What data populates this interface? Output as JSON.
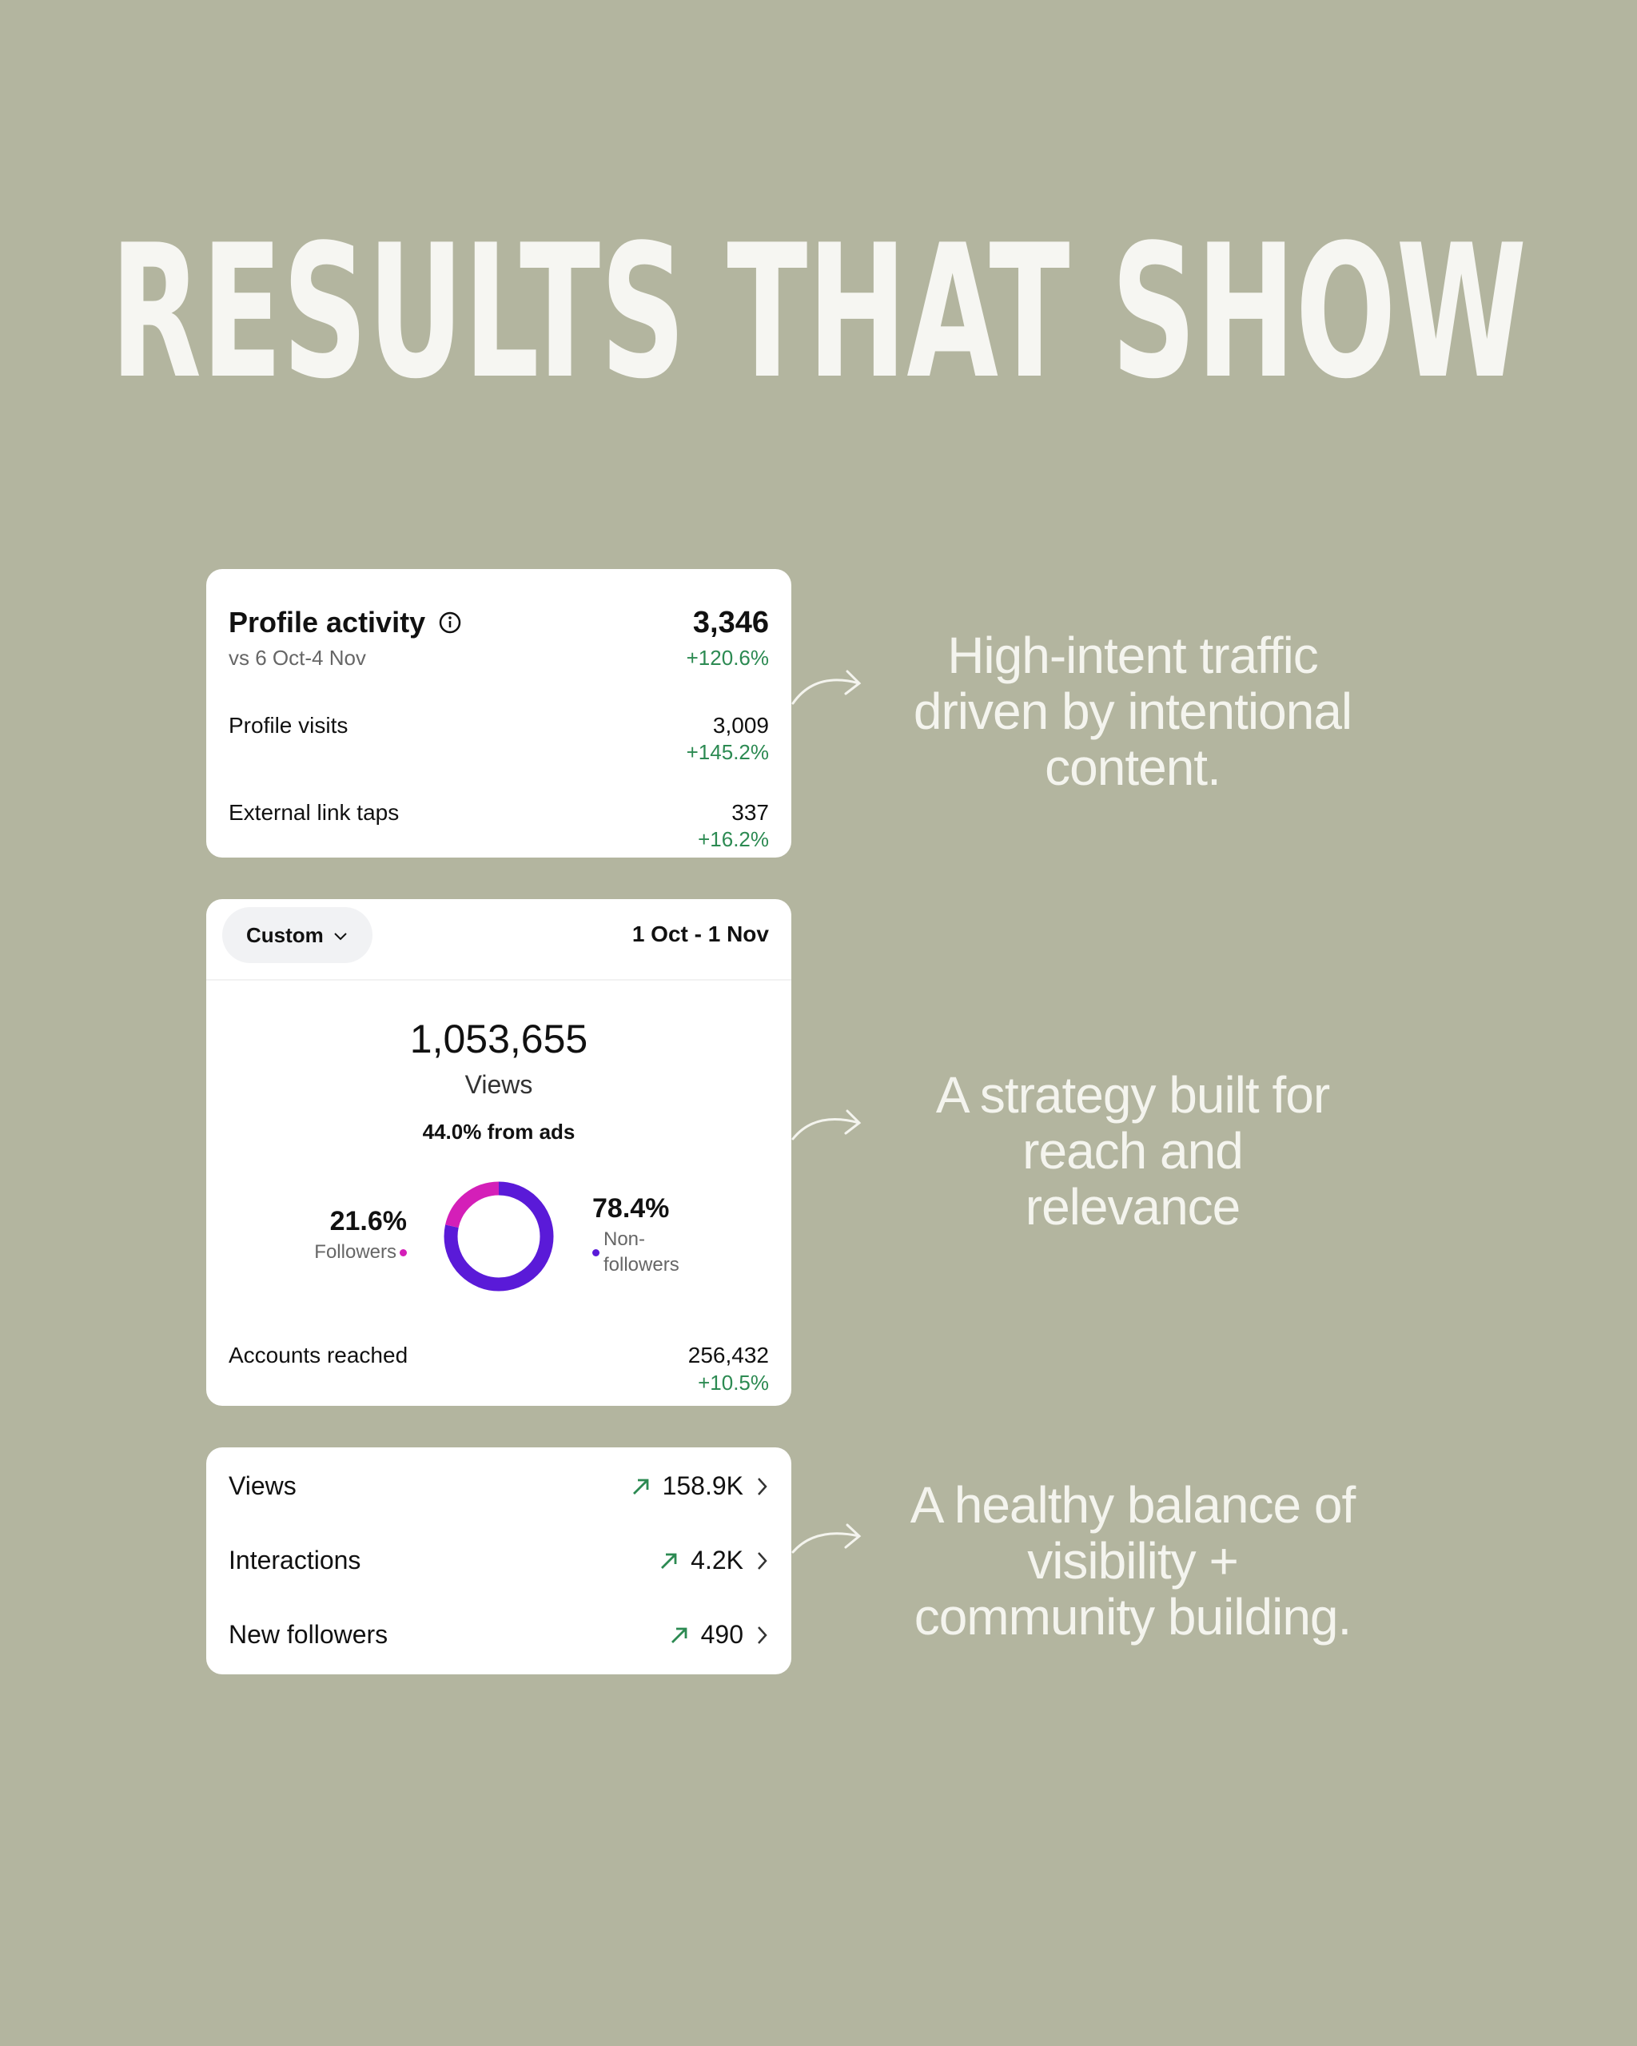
{
  "title": "RESULTS THAT SHOW",
  "profile_activity": {
    "title": "Profile activity",
    "comparison": "vs 6 Oct-4 Nov",
    "total": "3,346",
    "change": "+120.6%",
    "rows": [
      {
        "label": "Profile visits",
        "value": "3,009",
        "change": "+145.2%"
      },
      {
        "label": "External link taps",
        "value": "337",
        "change": "+16.2%"
      }
    ]
  },
  "views_card": {
    "filter": "Custom",
    "date_range": "1 Oct - 1 Nov",
    "views": "1,053,655",
    "views_label": "Views",
    "ads_note": "44.0% from ads",
    "segments": [
      {
        "value": 21.6,
        "label": "21.6%",
        "name": "Followers",
        "color": "#d41fb8"
      },
      {
        "value": 78.4,
        "label": "78.4%",
        "name": "Non-followers",
        "color": "#5a1ad8"
      }
    ],
    "accounts_reached": {
      "label": "Accounts reached",
      "value": "256,432",
      "change": "+10.5%"
    }
  },
  "overview": [
    {
      "label": "Views",
      "value": "158.9K"
    },
    {
      "label": "Interactions",
      "value": "4.2K"
    },
    {
      "label": "New followers",
      "value": "490"
    }
  ],
  "captions": [
    [
      "High-intent traffic",
      "driven by intentional",
      "content."
    ],
    [
      "A strategy built for",
      "reach and",
      "relevance"
    ],
    [
      "A healthy balance of",
      "visibility +",
      "community building."
    ]
  ]
}
